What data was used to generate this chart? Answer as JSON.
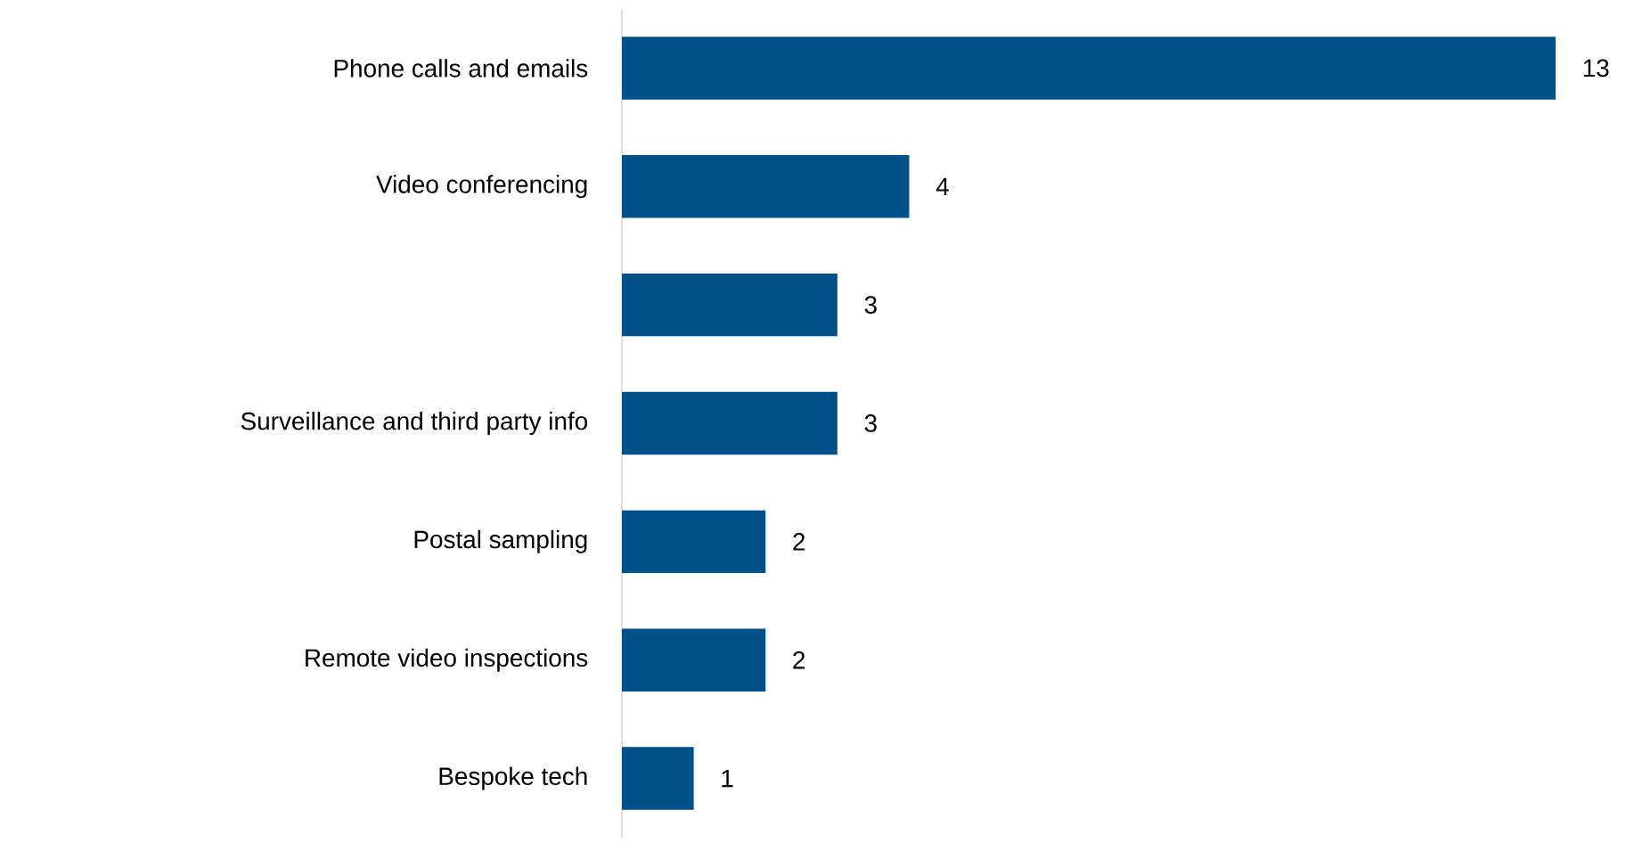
{
  "chart_data": {
    "type": "bar",
    "orientation": "horizontal",
    "categories": [
      "Phone calls and emails",
      "Video conferencing",
      null,
      "Surveillance and third party info",
      "Postal sampling",
      "Remote video inspections",
      "Bespoke tech"
    ],
    "values": [
      13,
      4,
      3,
      3,
      2,
      2,
      1
    ],
    "color": "#00508a",
    "data_labels": true
  }
}
